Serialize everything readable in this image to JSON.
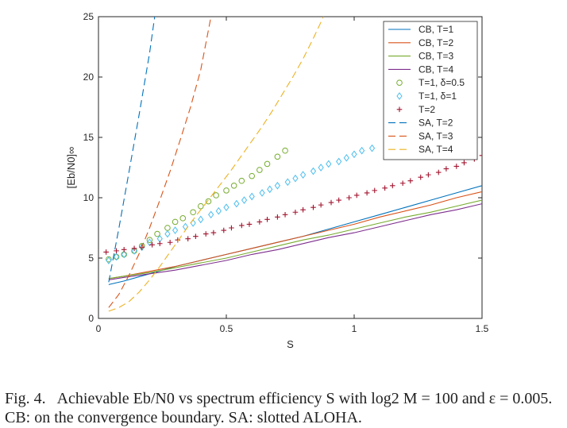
{
  "caption": "Fig. 4.   Achievable Eb/N0 vs spectrum efficiency S with log2 M = 100 and ε = 0.005. CB: on the convergence boundary. SA: slotted ALOHA.",
  "chart_data": {
    "type": "line",
    "title": "",
    "xlabel": "S",
    "ylabel": "[Eb/N0]∞",
    "xlim": [
      0,
      1.5
    ],
    "ylim": [
      0,
      25
    ],
    "x_ticks": [
      "0",
      "0.5",
      "1",
      "1.5"
    ],
    "y_ticks": [
      "0",
      "5",
      "10",
      "15",
      "20",
      "25"
    ],
    "grid": false,
    "legend_position": "top-right",
    "series": [
      {
        "name": "CB, T=1",
        "style": "solid",
        "color": "#0072BD",
        "x": [
          0.04,
          0.1,
          0.2,
          0.3,
          0.4,
          0.5,
          0.6,
          0.7,
          0.8,
          0.9,
          1.0,
          1.1,
          1.2,
          1.3,
          1.4,
          1.5
        ],
        "y": [
          2.8,
          3.1,
          3.7,
          4.3,
          4.8,
          5.3,
          5.8,
          6.3,
          6.8,
          7.4,
          8.0,
          8.6,
          9.2,
          9.8,
          10.4,
          11.0
        ]
      },
      {
        "name": "CB, T=2",
        "style": "solid",
        "color": "#D95319",
        "x": [
          0.04,
          0.1,
          0.2,
          0.3,
          0.4,
          0.5,
          0.6,
          0.7,
          0.8,
          0.9,
          1.0,
          1.1,
          1.2,
          1.3,
          1.4,
          1.5
        ],
        "y": [
          3.3,
          3.5,
          3.9,
          4.3,
          4.8,
          5.3,
          5.8,
          6.3,
          6.8,
          7.3,
          7.8,
          8.4,
          8.9,
          9.4,
          10.0,
          10.5
        ]
      },
      {
        "name": "CB, T=3",
        "style": "solid",
        "color": "#77AC30",
        "x": [
          0.04,
          0.1,
          0.2,
          0.3,
          0.4,
          0.5,
          0.6,
          0.7,
          0.8,
          0.9,
          1.0,
          1.1,
          1.2,
          1.3,
          1.4,
          1.5
        ],
        "y": [
          3.3,
          3.5,
          3.8,
          4.2,
          4.6,
          5.0,
          5.5,
          6.0,
          6.5,
          6.9,
          7.4,
          7.9,
          8.4,
          8.8,
          9.3,
          9.8
        ]
      },
      {
        "name": "CB, T=4",
        "style": "solid",
        "color": "#7E2F8E",
        "x": [
          0.04,
          0.1,
          0.2,
          0.3,
          0.4,
          0.5,
          0.6,
          0.7,
          0.8,
          0.9,
          1.0,
          1.1,
          1.2,
          1.3,
          1.4,
          1.5
        ],
        "y": [
          3.2,
          3.4,
          3.7,
          4.0,
          4.4,
          4.8,
          5.3,
          5.7,
          6.2,
          6.7,
          7.1,
          7.6,
          8.1,
          8.6,
          9.0,
          9.5
        ]
      },
      {
        "name": "T=1, δ=0.5",
        "style": "circle",
        "color": "#77AC30",
        "x": [
          0.04,
          0.07,
          0.1,
          0.14,
          0.17,
          0.2,
          0.23,
          0.27,
          0.3,
          0.33,
          0.37,
          0.4,
          0.43,
          0.46,
          0.5,
          0.53,
          0.56,
          0.6,
          0.63,
          0.66,
          0.7,
          0.73
        ],
        "y": [
          4.9,
          5.1,
          5.3,
          5.6,
          6.0,
          6.5,
          7.0,
          7.5,
          8.0,
          8.3,
          8.8,
          9.3,
          9.7,
          10.2,
          10.6,
          11.0,
          11.4,
          11.8,
          12.3,
          12.8,
          13.4,
          13.9
        ]
      },
      {
        "name": "T=1, δ=1",
        "style": "diamond",
        "color": "#4DBEEE",
        "x": [
          0.04,
          0.07,
          0.1,
          0.14,
          0.17,
          0.2,
          0.24,
          0.27,
          0.3,
          0.34,
          0.37,
          0.4,
          0.44,
          0.47,
          0.5,
          0.54,
          0.57,
          0.6,
          0.64,
          0.67,
          0.7,
          0.74,
          0.77,
          0.8,
          0.84,
          0.87,
          0.9,
          0.94,
          0.97,
          1.0,
          1.03,
          1.07
        ],
        "y": [
          4.8,
          5.1,
          5.3,
          5.6,
          5.9,
          6.3,
          6.6,
          7.0,
          7.3,
          7.6,
          7.9,
          8.2,
          8.6,
          8.9,
          9.2,
          9.5,
          9.8,
          10.1,
          10.4,
          10.7,
          11.0,
          11.3,
          11.6,
          11.9,
          12.2,
          12.5,
          12.8,
          13.0,
          13.3,
          13.6,
          13.9,
          14.1
        ]
      },
      {
        "name": "T=2",
        "style": "plus",
        "color": "#A2142F",
        "x": [
          0.03,
          0.07,
          0.1,
          0.14,
          0.17,
          0.21,
          0.24,
          0.28,
          0.31,
          0.35,
          0.38,
          0.42,
          0.45,
          0.49,
          0.52,
          0.56,
          0.59,
          0.63,
          0.66,
          0.7,
          0.73,
          0.77,
          0.8,
          0.84,
          0.87,
          0.91,
          0.94,
          0.98,
          1.01,
          1.05,
          1.08,
          1.12,
          1.15,
          1.19,
          1.22,
          1.26,
          1.29,
          1.33,
          1.36,
          1.4,
          1.43,
          1.47,
          1.5
        ],
        "y": [
          5.5,
          5.6,
          5.7,
          5.8,
          5.9,
          6.1,
          6.2,
          6.3,
          6.5,
          6.6,
          6.8,
          7.0,
          7.1,
          7.3,
          7.5,
          7.7,
          7.8,
          8.0,
          8.2,
          8.4,
          8.6,
          8.8,
          9.0,
          9.2,
          9.4,
          9.6,
          9.8,
          10.0,
          10.2,
          10.4,
          10.6,
          10.8,
          11.0,
          11.2,
          11.4,
          11.7,
          11.9,
          12.1,
          12.4,
          12.6,
          12.9,
          13.2,
          13.5
        ]
      },
      {
        "name": "SA, T=2",
        "style": "dashed",
        "color": "#0072BD",
        "x": [
          0.04,
          0.08,
          0.12,
          0.16,
          0.2,
          0.22
        ],
        "y": [
          3.0,
          7.5,
          12.2,
          17.0,
          22.0,
          25.0
        ]
      },
      {
        "name": "SA, T=3",
        "style": "dashed",
        "color": "#D95319",
        "x": [
          0.04,
          0.08,
          0.12,
          0.16,
          0.2,
          0.24,
          0.28,
          0.32,
          0.36,
          0.4,
          0.44
        ],
        "y": [
          0.9,
          2.0,
          3.6,
          5.4,
          7.5,
          9.8,
          12.2,
          14.8,
          17.5,
          20.6,
          25.0
        ]
      },
      {
        "name": "SA, T=4",
        "style": "dashed",
        "color": "#EDB120",
        "x": [
          0.04,
          0.08,
          0.12,
          0.16,
          0.2,
          0.24,
          0.28,
          0.32,
          0.36,
          0.4,
          0.44,
          0.48,
          0.52,
          0.56,
          0.6,
          0.64,
          0.68,
          0.72,
          0.76,
          0.8,
          0.84,
          0.88
        ],
        "y": [
          0.6,
          0.9,
          1.4,
          2.2,
          3.2,
          4.3,
          5.5,
          6.7,
          7.9,
          9.0,
          10.1,
          11.2,
          12.3,
          13.5,
          14.7,
          15.9,
          17.2,
          18.6,
          20.0,
          21.5,
          23.2,
          25.0
        ]
      }
    ]
  }
}
